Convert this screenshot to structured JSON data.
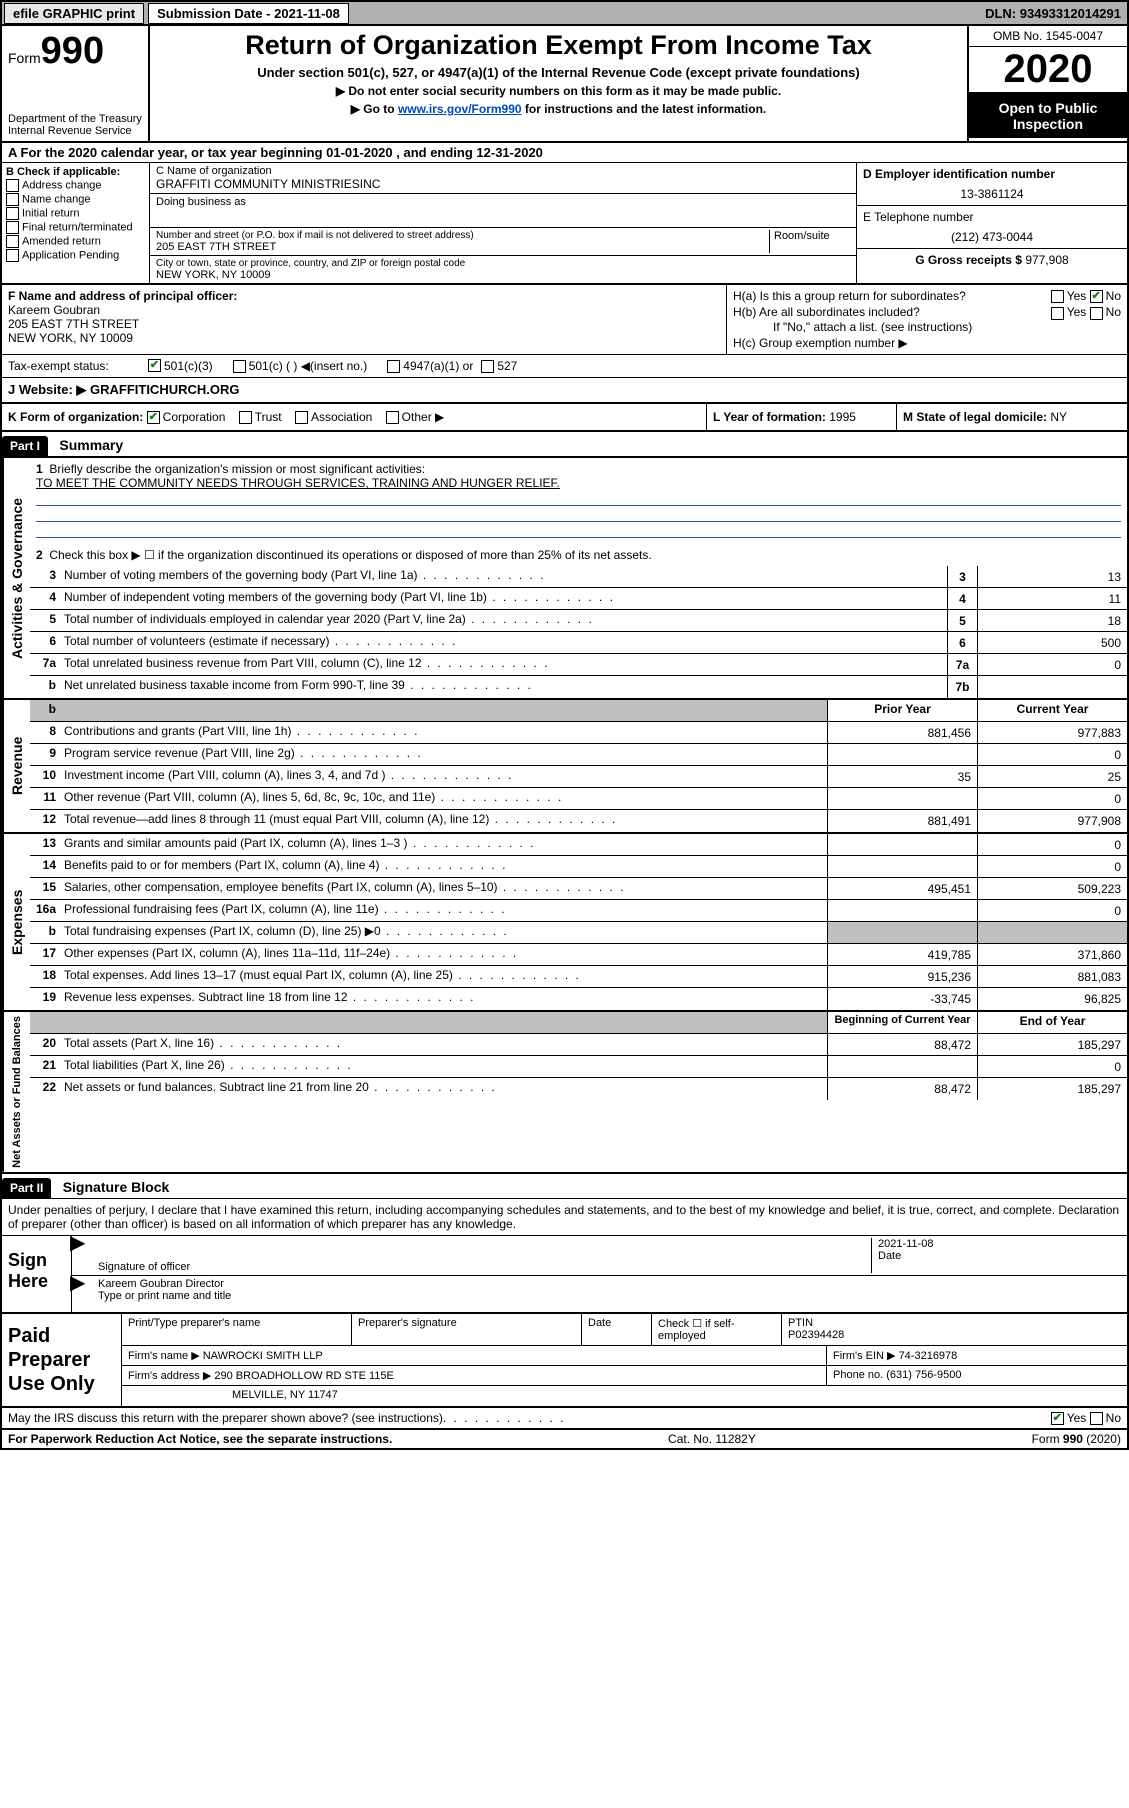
{
  "topbar": {
    "efile": "efile GRAPHIC print",
    "subdate_label": "Submission Date - ",
    "subdate": "2021-11-08",
    "dln_label": "DLN: ",
    "dln": "93493312014291"
  },
  "header": {
    "form_label": "Form",
    "form_num": "990",
    "dept": "Department of the Treasury\nInternal Revenue Service",
    "title": "Return of Organization Exempt From Income Tax",
    "subtitle": "Under section 501(c), 527, or 4947(a)(1) of the Internal Revenue Code (except private foundations)",
    "note1": "▶ Do not enter social security numbers on this form as it may be made public.",
    "note2_pre": "▶ Go to ",
    "note2_link": "www.irs.gov/Form990",
    "note2_post": " for instructions and the latest information.",
    "omb": "OMB No. 1545-0047",
    "year": "2020",
    "opentopublic": "Open to Public Inspection"
  },
  "period": {
    "line": "A For the 2020 calendar year, or tax year beginning 01-01-2020   , and ending 12-31-2020"
  },
  "sectionB": {
    "label": "B Check if applicable:",
    "items": [
      "Address change",
      "Name change",
      "Initial return",
      "Final return/terminated",
      "Amended return",
      "Application Pending"
    ]
  },
  "sectionC": {
    "name_label": "C Name of organization",
    "name": "GRAFFITI COMMUNITY MINISTRIESINC",
    "dba_label": "Doing business as",
    "street_label": "Number and street (or P.O. box if mail is not delivered to street address)",
    "suite_label": "Room/suite",
    "street": "205 EAST 7TH STREET",
    "city_label": "City or town, state or province, country, and ZIP or foreign postal code",
    "city": "NEW YORK, NY  10009"
  },
  "sectionD": {
    "ein_label": "D Employer identification number",
    "ein": "13-3861124",
    "phone_label": "E Telephone number",
    "phone": "(212) 473-0044",
    "gross_label": "G Gross receipts $ ",
    "gross": "977,908"
  },
  "sectionF": {
    "label": "F  Name and address of principal officer:",
    "name": "Kareem Goubran",
    "addr1": "205 EAST 7TH STREET",
    "addr2": "NEW YORK, NY  10009"
  },
  "sectionH": {
    "a": "H(a)  Is this a group return for subordinates?",
    "a_yes": "Yes",
    "a_no": "No",
    "b": "H(b)  Are all subordinates included?",
    "b_yes": "Yes",
    "b_no": "No",
    "b_note": "If \"No,\" attach a list. (see instructions)",
    "c": "H(c)  Group exemption number ▶"
  },
  "status": {
    "label": "Tax-exempt status:",
    "opt1": "501(c)(3)",
    "opt2": "501(c) (   ) ◀(insert no.)",
    "opt3": "4947(a)(1) or",
    "opt4": "527"
  },
  "website": {
    "label": "J  Website: ▶",
    "value": " GRAFFITICHURCH.ORG"
  },
  "kform": {
    "label": "K Form of organization:",
    "corp": "Corporation",
    "trust": "Trust",
    "assoc": "Association",
    "other": "Other ▶",
    "L": "L Year of formation: ",
    "Lval": "1995",
    "M": "M State of legal domicile: ",
    "Mval": "NY"
  },
  "part1": {
    "barlabel": "Part I",
    "title": "Summary"
  },
  "governance": {
    "vlabel": "Activities & Governance",
    "line1_label": "Briefly describe the organization's mission or most significant activities:",
    "line1_value": "TO MEET THE COMMUNITY NEEDS THROUGH SERVICES, TRAINING AND HUNGER RELIEF.",
    "line2": "Check this box ▶ ☐  if the organization discontinued its operations or disposed of more than 25% of its net assets.",
    "rows": [
      {
        "n": "3",
        "d": "Number of voting members of the governing body (Part VI, line 1a)",
        "rn": "3",
        "v": "13"
      },
      {
        "n": "4",
        "d": "Number of independent voting members of the governing body (Part VI, line 1b)",
        "rn": "4",
        "v": "11"
      },
      {
        "n": "5",
        "d": "Total number of individuals employed in calendar year 2020 (Part V, line 2a)",
        "rn": "5",
        "v": "18"
      },
      {
        "n": "6",
        "d": "Total number of volunteers (estimate if necessary)",
        "rn": "6",
        "v": "500"
      },
      {
        "n": "7a",
        "d": "Total unrelated business revenue from Part VIII, column (C), line 12",
        "rn": "7a",
        "v": "0"
      },
      {
        "n": "b",
        "d": "Net unrelated business taxable income from Form 990-T, line 39",
        "rn": "7b",
        "v": ""
      }
    ]
  },
  "revenue": {
    "vlabel": "Revenue",
    "hdr_prior": "Prior Year",
    "hdr_current": "Current Year",
    "rows": [
      {
        "n": "8",
        "d": "Contributions and grants (Part VIII, line 1h)",
        "p": "881,456",
        "c": "977,883"
      },
      {
        "n": "9",
        "d": "Program service revenue (Part VIII, line 2g)",
        "p": "",
        "c": "0"
      },
      {
        "n": "10",
        "d": "Investment income (Part VIII, column (A), lines 3, 4, and 7d )",
        "p": "35",
        "c": "25"
      },
      {
        "n": "11",
        "d": "Other revenue (Part VIII, column (A), lines 5, 6d, 8c, 9c, 10c, and 11e)",
        "p": "",
        "c": "0"
      },
      {
        "n": "12",
        "d": "Total revenue—add lines 8 through 11 (must equal Part VIII, column (A), line 12)",
        "p": "881,491",
        "c": "977,908"
      }
    ]
  },
  "expenses": {
    "vlabel": "Expenses",
    "rows": [
      {
        "n": "13",
        "d": "Grants and similar amounts paid (Part IX, column (A), lines 1–3 )",
        "p": "",
        "c": "0"
      },
      {
        "n": "14",
        "d": "Benefits paid to or for members (Part IX, column (A), line 4)",
        "p": "",
        "c": "0"
      },
      {
        "n": "15",
        "d": "Salaries, other compensation, employee benefits (Part IX, column (A), lines 5–10)",
        "p": "495,451",
        "c": "509,223"
      },
      {
        "n": "16a",
        "d": "Professional fundraising fees (Part IX, column (A), line 11e)",
        "p": "",
        "c": "0"
      },
      {
        "n": "b",
        "d": "Total fundraising expenses (Part IX, column (D), line 25) ▶0",
        "p": "SHADED",
        "c": "SHADED"
      },
      {
        "n": "17",
        "d": "Other expenses (Part IX, column (A), lines 11a–11d, 11f–24e)",
        "p": "419,785",
        "c": "371,860"
      },
      {
        "n": "18",
        "d": "Total expenses. Add lines 13–17 (must equal Part IX, column (A), line 25)",
        "p": "915,236",
        "c": "881,083"
      },
      {
        "n": "19",
        "d": "Revenue less expenses. Subtract line 18 from line 12",
        "p": "-33,745",
        "c": "96,825"
      }
    ]
  },
  "netassets": {
    "vlabel": "Net Assets or Fund Balances",
    "hdr_begin": "Beginning of Current Year",
    "hdr_end": "End of Year",
    "rows": [
      {
        "n": "20",
        "d": "Total assets (Part X, line 16)",
        "p": "88,472",
        "c": "185,297"
      },
      {
        "n": "21",
        "d": "Total liabilities (Part X, line 26)",
        "p": "",
        "c": "0"
      },
      {
        "n": "22",
        "d": "Net assets or fund balances. Subtract line 21 from line 20",
        "p": "88,472",
        "c": "185,297"
      }
    ]
  },
  "part2": {
    "barlabel": "Part II",
    "title": "Signature Block",
    "text": "Under penalties of perjury, I declare that I have examined this return, including accompanying schedules and statements, and to the best of my knowledge and belief, it is true, correct, and complete. Declaration of preparer (other than officer) is based on all information of which preparer has any knowledge."
  },
  "sign": {
    "label": "Sign Here",
    "sig_of_officer": "Signature of officer",
    "date_label": "Date",
    "date": "2021-11-08",
    "name": "Kareem Goubran  Director",
    "name_label": "Type or print name and title"
  },
  "preparer": {
    "label": "Paid Preparer Use Only",
    "r1": {
      "c1": "Print/Type preparer's name",
      "c2": "Preparer's signature",
      "c3": "Date",
      "c4_pre": "Check ☐ if self-employed",
      "c5_label": "PTIN",
      "c5": "P02394428"
    },
    "r2": {
      "c1": "Firm's name    ▶ ",
      "c1v": "NAWROCKI SMITH LLP",
      "c2": "Firm's EIN ▶ ",
      "c2v": "74-3216978"
    },
    "r3": {
      "c1": "Firm's address ▶ ",
      "c1v": "290 BROADHOLLOW RD STE 115E",
      "c2": "Phone no. ",
      "c2v": "(631) 756-9500"
    },
    "r4": {
      "c1": "MELVILLE, NY  11747"
    }
  },
  "discuss": {
    "q": "May the IRS discuss this return with the preparer shown above? (see instructions)",
    "yes": "Yes",
    "no": "No"
  },
  "footer": {
    "l": "For Paperwork Reduction Act Notice, see the separate instructions.",
    "m": "Cat. No. 11282Y",
    "r": "Form 990 (2020)"
  },
  "colors": {
    "topbar_bg": "#b0b0b0",
    "link": "#0047bb",
    "check_green": "#1a7a1a",
    "shaded": "#c0c0c0",
    "underline": "#3050c0"
  }
}
